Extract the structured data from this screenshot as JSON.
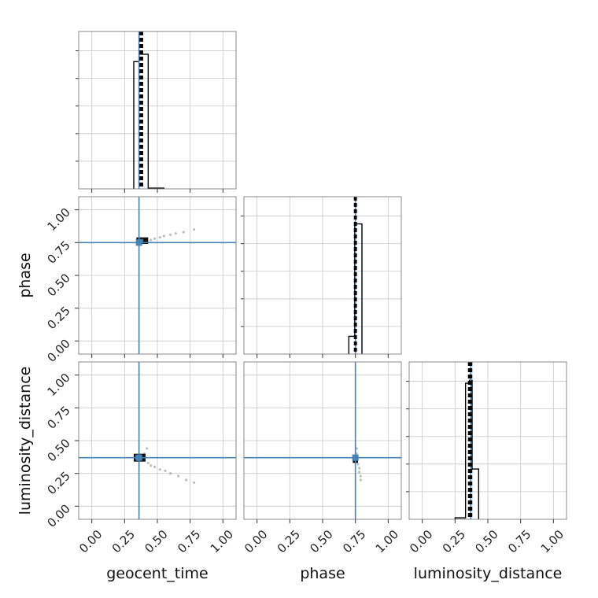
{
  "chart_data": {
    "type": "corner",
    "parameters": [
      "geocent_time",
      "phase",
      "luminosity_distance"
    ],
    "axis_range": [
      -0.1,
      1.1
    ],
    "tick_labels": [
      "0.00",
      "0.25",
      "0.50",
      "0.75",
      "1.00"
    ],
    "truths": {
      "geocent_time": 0.36,
      "phase": 0.75,
      "luminosity_distance": 0.37
    },
    "quantiles": {
      "geocent_time": [
        0.37,
        0.375,
        0.385
      ],
      "phase": [
        0.745,
        0.75,
        0.755
      ],
      "luminosity_distance": [
        0.355,
        0.365,
        0.375
      ]
    },
    "grid": true,
    "colors": {
      "truth": "#4682b4",
      "hist": "#000000",
      "points": "#888888",
      "grid": "#c8c8c8",
      "frame": "#888888"
    },
    "histograms": {
      "geocent_time": {
        "edges": [
          0.32,
          0.36,
          0.43,
          0.55
        ],
        "counts": [
          0.86,
          0.91,
          0.005
        ],
        "ymax": 1.0
      },
      "phase": {
        "edges": [
          0.7,
          0.745,
          0.8
        ],
        "counts": [
          0.06,
          0.44
        ],
        "ymax": 0.5
      },
      "luminosity_distance": {
        "edges": [
          0.25,
          0.33,
          0.36,
          0.38,
          0.43
        ],
        "counts": [
          0.005,
          0.46,
          0.47,
          0.17
        ],
        "ymax": 0.5
      }
    },
    "scatter": {
      "phase_vs_geocent_time": [
        [
          0.4,
          0.76
        ],
        [
          0.45,
          0.77
        ],
        [
          0.48,
          0.78
        ],
        [
          0.52,
          0.79
        ],
        [
          0.55,
          0.8
        ],
        [
          0.6,
          0.81
        ],
        [
          0.64,
          0.82
        ],
        [
          0.7,
          0.83
        ],
        [
          0.78,
          0.85
        ]
      ],
      "luminosity_distance_vs_geocent_time": [
        [
          0.4,
          0.4
        ],
        [
          0.42,
          0.44
        ],
        [
          0.43,
          0.33
        ],
        [
          0.45,
          0.31
        ],
        [
          0.48,
          0.3
        ],
        [
          0.52,
          0.28
        ],
        [
          0.56,
          0.27
        ],
        [
          0.6,
          0.25
        ],
        [
          0.66,
          0.23
        ],
        [
          0.72,
          0.2
        ],
        [
          0.78,
          0.18
        ]
      ],
      "luminosity_distance_vs_phase": [
        [
          0.76,
          0.4
        ],
        [
          0.76,
          0.44
        ],
        [
          0.77,
          0.32
        ],
        [
          0.78,
          0.29
        ],
        [
          0.78,
          0.26
        ],
        [
          0.79,
          0.23
        ],
        [
          0.79,
          0.2
        ]
      ]
    },
    "cores": {
      "phase_vs_geocent_time": [
        0.34,
        0.43,
        0.74,
        0.79
      ],
      "luminosity_distance_vs_geocent_time": [
        0.32,
        0.41,
        0.34,
        0.4
      ],
      "luminosity_distance_vs_phase": [
        0.73,
        0.77,
        0.33,
        0.39
      ]
    }
  }
}
